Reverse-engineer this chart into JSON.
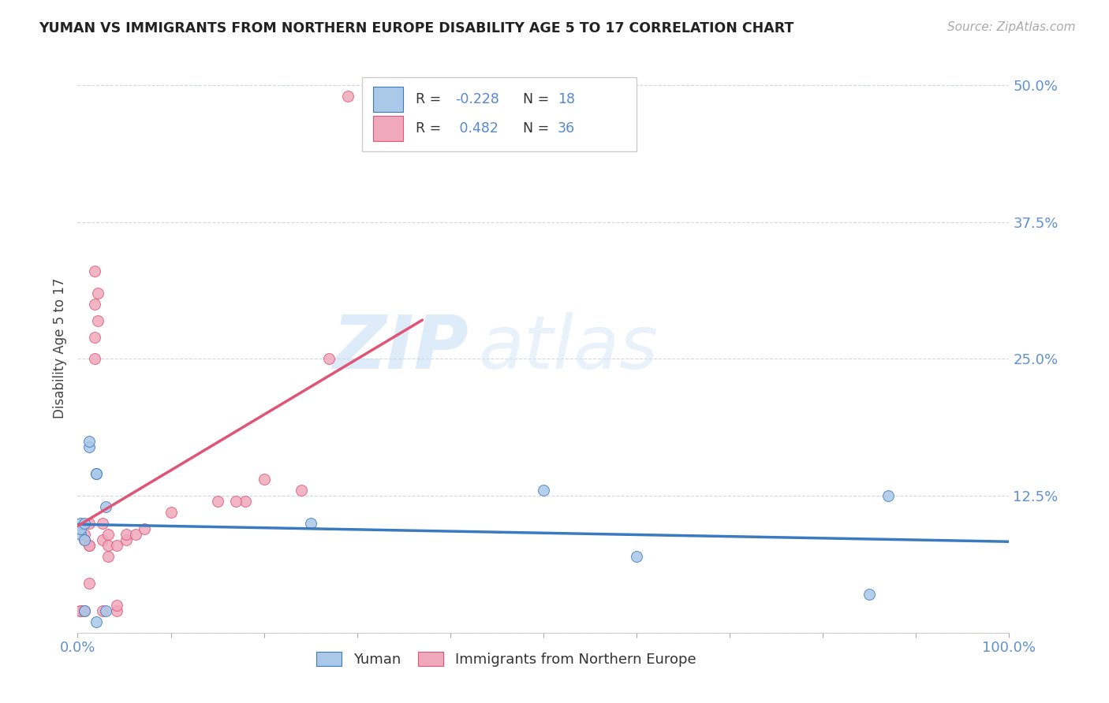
{
  "title": "YUMAN VS IMMIGRANTS FROM NORTHERN EUROPE DISABILITY AGE 5 TO 17 CORRELATION CHART",
  "source": "Source: ZipAtlas.com",
  "ylabel": "Disability Age 5 to 17",
  "xlim": [
    0.0,
    1.0
  ],
  "ylim": [
    0.0,
    0.52
  ],
  "yticks": [
    0.0,
    0.125,
    0.25,
    0.375,
    0.5
  ],
  "ytick_labels": [
    "",
    "12.5%",
    "25.0%",
    "37.5%",
    "50.0%"
  ],
  "xticks": [
    0.0,
    0.1,
    0.2,
    0.3,
    0.4,
    0.5,
    0.6,
    0.7,
    0.8,
    0.9,
    1.0
  ],
  "xtick_labels_show": [
    "0.0%",
    "",
    "",
    "",
    "",
    "",
    "",
    "",
    "",
    "",
    "100.0%"
  ],
  "r_yuman": -0.228,
  "n_yuman": 18,
  "r_immig": 0.482,
  "n_immig": 36,
  "blue_color": "#aac8e8",
  "pink_color": "#f0a8bc",
  "blue_line_color": "#3a7abf",
  "pink_line_color": "#e05575",
  "watermark_zip": "ZIP",
  "watermark_atlas": "atlas",
  "yuman_x": [
    0.003,
    0.003,
    0.003,
    0.007,
    0.007,
    0.007,
    0.012,
    0.012,
    0.02,
    0.02,
    0.02,
    0.03,
    0.03,
    0.25,
    0.5,
    0.6,
    0.85,
    0.87
  ],
  "yuman_y": [
    0.09,
    0.1,
    0.095,
    0.1,
    0.085,
    0.02,
    0.17,
    0.175,
    0.145,
    0.145,
    0.01,
    0.115,
    0.02,
    0.1,
    0.13,
    0.07,
    0.035,
    0.125
  ],
  "immig_x": [
    0.003,
    0.003,
    0.007,
    0.007,
    0.007,
    0.012,
    0.012,
    0.012,
    0.012,
    0.018,
    0.018,
    0.018,
    0.018,
    0.022,
    0.022,
    0.027,
    0.027,
    0.027,
    0.033,
    0.033,
    0.033,
    0.042,
    0.042,
    0.042,
    0.052,
    0.052,
    0.062,
    0.072,
    0.1,
    0.15,
    0.18,
    0.2,
    0.24,
    0.27,
    0.29,
    0.17
  ],
  "immig_y": [
    0.02,
    0.02,
    0.09,
    0.085,
    0.02,
    0.08,
    0.08,
    0.045,
    0.1,
    0.27,
    0.25,
    0.3,
    0.33,
    0.285,
    0.31,
    0.085,
    0.1,
    0.02,
    0.07,
    0.08,
    0.09,
    0.02,
    0.025,
    0.08,
    0.085,
    0.09,
    0.09,
    0.095,
    0.11,
    0.12,
    0.12,
    0.14,
    0.13,
    0.25,
    0.49,
    0.12
  ]
}
